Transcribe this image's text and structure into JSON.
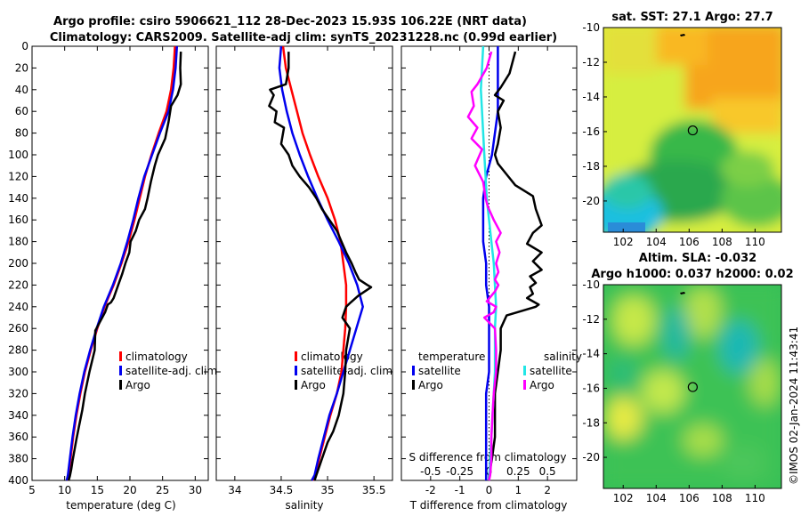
{
  "figure": {
    "title_line1": "Argo profile: csiro 5906621_112 28-Dec-2023 15.93S 106.22E (NRT data)",
    "title_line2": "Climatology: CARS2009. Satellite-adj clim: synTS_20231228.nc (0.99d earlier)",
    "credit": "©IMOS 02-Jan-2024 11:43:41"
  },
  "colors": {
    "climatology": "#ff0000",
    "satellite": "#0000ee",
    "argo": "#000000",
    "salinity_satellite": "#22e6e6",
    "salinity_argo": "#ff00ff"
  },
  "chart_data": [
    {
      "id": "temperature",
      "type": "line",
      "xlabel": "temperature (deg C)",
      "ylabel": "",
      "xlim": [
        5,
        32
      ],
      "xticks": [
        5,
        10,
        15,
        20,
        25,
        30
      ],
      "ylim": [
        0,
        400
      ],
      "yticks": [
        0,
        20,
        40,
        60,
        80,
        100,
        120,
        140,
        160,
        180,
        200,
        220,
        240,
        260,
        280,
        300,
        320,
        340,
        360,
        380,
        400
      ],
      "legend": [
        "climatology",
        "satellite-adj. clim",
        "Argo"
      ],
      "series": [
        {
          "name": "climatology",
          "color": "#ff0000",
          "width": 2.5,
          "x": [
            26.9,
            26.7,
            26.3,
            25.6,
            24.4,
            23.3,
            22.3,
            21.5,
            20.7,
            19.8,
            18.7,
            17.5,
            16.1,
            15.0,
            14.0,
            13.1,
            12.4,
            11.8,
            11.3,
            10.9,
            10.6,
            10.4
          ],
          "y": [
            0,
            20,
            40,
            60,
            80,
            100,
            120,
            140,
            160,
            180,
            200,
            220,
            240,
            260,
            280,
            300,
            320,
            340,
            360,
            380,
            395,
            400
          ]
        },
        {
          "name": "satellite-adj. clim",
          "color": "#0000ee",
          "width": 2.5,
          "x": [
            27.2,
            27.0,
            26.6,
            25.9,
            24.6,
            23.4,
            22.2,
            21.3,
            20.5,
            19.6,
            18.6,
            17.4,
            16.0,
            14.9,
            13.9,
            13.0,
            12.3,
            11.7,
            11.2,
            10.8,
            10.5,
            10.3
          ],
          "y": [
            0,
            20,
            40,
            60,
            80,
            100,
            120,
            140,
            160,
            180,
            200,
            220,
            240,
            260,
            280,
            300,
            320,
            340,
            360,
            380,
            395,
            400
          ]
        },
        {
          "name": "Argo",
          "color": "#000000",
          "width": 2.5,
          "x": [
            27.8,
            27.7,
            27.8,
            27.3,
            26.3,
            25.9,
            25.4,
            24.3,
            23.8,
            23.2,
            22.7,
            22.3,
            21.4,
            20.9,
            20.1,
            19.9,
            19.3,
            18.8,
            18.2,
            17.5,
            17.1,
            16.6,
            16.2,
            14.7,
            14.6,
            13.8,
            13.1,
            12.7,
            12.2,
            11.8,
            11.5,
            11.2,
            11.0,
            10.8,
            10.6
          ],
          "y": [
            5,
            20,
            35,
            45,
            55,
            70,
            85,
            100,
            110,
            125,
            140,
            150,
            160,
            170,
            180,
            190,
            200,
            210,
            220,
            232,
            236,
            238,
            245,
            262,
            280,
            300,
            320,
            335,
            350,
            362,
            372,
            382,
            390,
            396,
            400
          ]
        }
      ]
    },
    {
      "id": "salinity",
      "type": "line",
      "xlabel": "salinity",
      "xlim": [
        33.8,
        35.7
      ],
      "xticks": [
        34,
        34.5,
        35,
        35.5
      ],
      "ylim": [
        0,
        400
      ],
      "legend": [
        "climatology",
        "satellite-adj. clim",
        "Argo"
      ],
      "series": [
        {
          "name": "climatology",
          "color": "#ff0000",
          "width": 2.5,
          "x": [
            34.52,
            34.55,
            34.61,
            34.67,
            34.73,
            34.81,
            34.9,
            35.0,
            35.08,
            35.14,
            35.17,
            35.2,
            35.2,
            35.19,
            35.17,
            35.15,
            35.1,
            35.03,
            34.97,
            34.91,
            34.87,
            34.84
          ],
          "y": [
            0,
            20,
            40,
            60,
            80,
            100,
            120,
            140,
            160,
            180,
            200,
            220,
            240,
            260,
            280,
            300,
            320,
            340,
            360,
            380,
            395,
            400
          ]
        },
        {
          "name": "satellite-adj. clim",
          "color": "#0000ee",
          "width": 2.5,
          "x": [
            34.5,
            34.48,
            34.51,
            34.56,
            34.62,
            34.7,
            34.79,
            34.89,
            35.0,
            35.12,
            35.23,
            35.32,
            35.38,
            35.31,
            35.24,
            35.17,
            35.1,
            35.02,
            34.96,
            34.9,
            34.86,
            34.83
          ],
          "y": [
            0,
            20,
            40,
            60,
            80,
            100,
            120,
            140,
            160,
            180,
            200,
            220,
            240,
            260,
            280,
            300,
            320,
            340,
            360,
            380,
            395,
            400
          ]
        },
        {
          "name": "Argo",
          "color": "#000000",
          "width": 2.5,
          "x": [
            34.58,
            34.58,
            34.55,
            34.38,
            34.42,
            34.37,
            34.45,
            34.43,
            34.53,
            34.5,
            34.58,
            34.62,
            34.7,
            34.8,
            34.88,
            34.94,
            35.02,
            35.1,
            35.15,
            35.2,
            35.26,
            35.3,
            35.34,
            35.43,
            35.47,
            35.33,
            35.25,
            35.2,
            35.16,
            35.24,
            35.2,
            35.19,
            35.17,
            35.12,
            35.06,
            35.0,
            34.96,
            34.92,
            34.88,
            34.86
          ],
          "y": [
            5,
            20,
            35,
            40,
            45,
            55,
            60,
            70,
            75,
            90,
            100,
            110,
            120,
            130,
            140,
            150,
            160,
            170,
            180,
            190,
            200,
            208,
            215,
            220,
            222,
            230,
            236,
            240,
            250,
            260,
            280,
            300,
            320,
            340,
            355,
            365,
            375,
            385,
            395,
            400
          ]
        }
      ]
    },
    {
      "id": "difference",
      "type": "line",
      "xlabel": "T difference from climatology",
      "xlabel_top": "S difference from climatology",
      "xlim": [
        -3,
        3
      ],
      "xticks": [
        -2,
        -1,
        0,
        1,
        2
      ],
      "s_xticks": [
        "-0.5",
        "-0.25",
        "0",
        "0.25",
        "0.5"
      ],
      "s_scale_per_t_unit": 0.25,
      "ylim": [
        0,
        400
      ],
      "legend_headers": [
        "temperature",
        "salinity"
      ],
      "legend": [
        "satellite",
        "Argo",
        "satellite",
        "Argo"
      ],
      "series": [
        {
          "name": "temperature satellite",
          "color": "#0000ee",
          "width": 2.5,
          "quantity": "T",
          "x": [
            0.3,
            0.3,
            0.3,
            0.3,
            0.2,
            0.1,
            -0.1,
            -0.2,
            -0.2,
            -0.2,
            -0.1,
            -0.1,
            0.0,
            0.0,
            0.0,
            0.0,
            -0.1,
            -0.1,
            -0.1,
            -0.1,
            -0.1
          ],
          "y": [
            0,
            20,
            40,
            60,
            80,
            100,
            120,
            140,
            160,
            180,
            200,
            220,
            240,
            260,
            280,
            300,
            320,
            340,
            360,
            380,
            400
          ]
        },
        {
          "name": "temperature Argo",
          "color": "#000000",
          "width": 2.5,
          "quantity": "T",
          "x": [
            0.9,
            0.7,
            0.4,
            0.2,
            0.5,
            0.3,
            0.4,
            0.3,
            0.2,
            0.3,
            0.6,
            0.9,
            1.5,
            1.6,
            1.8,
            1.5,
            1.3,
            1.8,
            1.5,
            1.8,
            1.4,
            1.6,
            1.4,
            1.5,
            1.3,
            1.7,
            1.6,
            0.6,
            0.4,
            0.4,
            0.3,
            0.2,
            0.2,
            0.2,
            0.1,
            0.0,
            0.0
          ],
          "y": [
            5,
            25,
            38,
            45,
            50,
            60,
            75,
            90,
            100,
            108,
            118,
            128,
            138,
            150,
            165,
            172,
            182,
            190,
            198,
            206,
            212,
            218,
            222,
            228,
            232,
            238,
            240,
            248,
            260,
            280,
            300,
            320,
            340,
            360,
            380,
            395,
            400
          ]
        },
        {
          "name": "salinity satellite",
          "color": "#22e6e6",
          "width": 2.5,
          "quantity": "S",
          "x": [
            -0.05,
            -0.06,
            -0.07,
            -0.06,
            -0.05,
            -0.04,
            -0.03,
            -0.02,
            0.0,
            0.02,
            0.04,
            0.05,
            0.06,
            0.05,
            0.05,
            0.05,
            0.04,
            0.03,
            0.02,
            0.01,
            0.0
          ],
          "y": [
            0,
            20,
            40,
            60,
            80,
            100,
            120,
            140,
            160,
            180,
            200,
            220,
            240,
            260,
            280,
            300,
            320,
            340,
            360,
            380,
            400
          ]
        },
        {
          "name": "salinity Argo",
          "color": "#ff00ff",
          "width": 2.5,
          "quantity": "S",
          "x": [
            0.02,
            -0.02,
            -0.1,
            -0.15,
            -0.13,
            -0.18,
            -0.1,
            -0.15,
            -0.06,
            -0.12,
            -0.05,
            -0.03,
            -0.01,
            0.02,
            0.04,
            0.1,
            0.06,
            0.09,
            0.06,
            0.08,
            0.05,
            0.08,
            0.05,
            -0.02,
            0.06,
            0.04,
            -0.04,
            0.05,
            0.06,
            0.06,
            0.04,
            0.03,
            0.02,
            0.02,
            0.01,
            0.0
          ],
          "y": [
            5,
            20,
            35,
            42,
            55,
            65,
            75,
            85,
            95,
            110,
            125,
            140,
            148,
            155,
            160,
            172,
            180,
            190,
            200,
            208,
            215,
            220,
            226,
            235,
            240,
            245,
            250,
            260,
            280,
            300,
            320,
            340,
            360,
            380,
            395,
            400
          ]
        }
      ]
    },
    {
      "id": "sst_map",
      "type": "heatmap",
      "title": "sat. SST: 27.1 Argo: 27.7",
      "xlim": [
        100.8,
        111.6
      ],
      "ylim": [
        -21.8,
        -10
      ],
      "xticks": [
        102,
        104,
        106,
        108,
        110
      ],
      "yticks": [
        -10,
        -12,
        -14,
        -16,
        -18,
        -20
      ],
      "profile_location": [
        106.22,
        -15.93
      ]
    },
    {
      "id": "sla_map",
      "type": "heatmap",
      "title": "Altim. SLA: -0.032",
      "subtitle": "Argo h1000: 0.037 h2000: 0.02",
      "xlim": [
        100.8,
        111.6
      ],
      "ylim": [
        -21.8,
        -10
      ],
      "xticks": [
        102,
        104,
        106,
        108,
        110
      ],
      "yticks": [
        -10,
        -12,
        -14,
        -16,
        -18,
        -20
      ],
      "profile_location": [
        106.22,
        -15.93
      ]
    }
  ]
}
